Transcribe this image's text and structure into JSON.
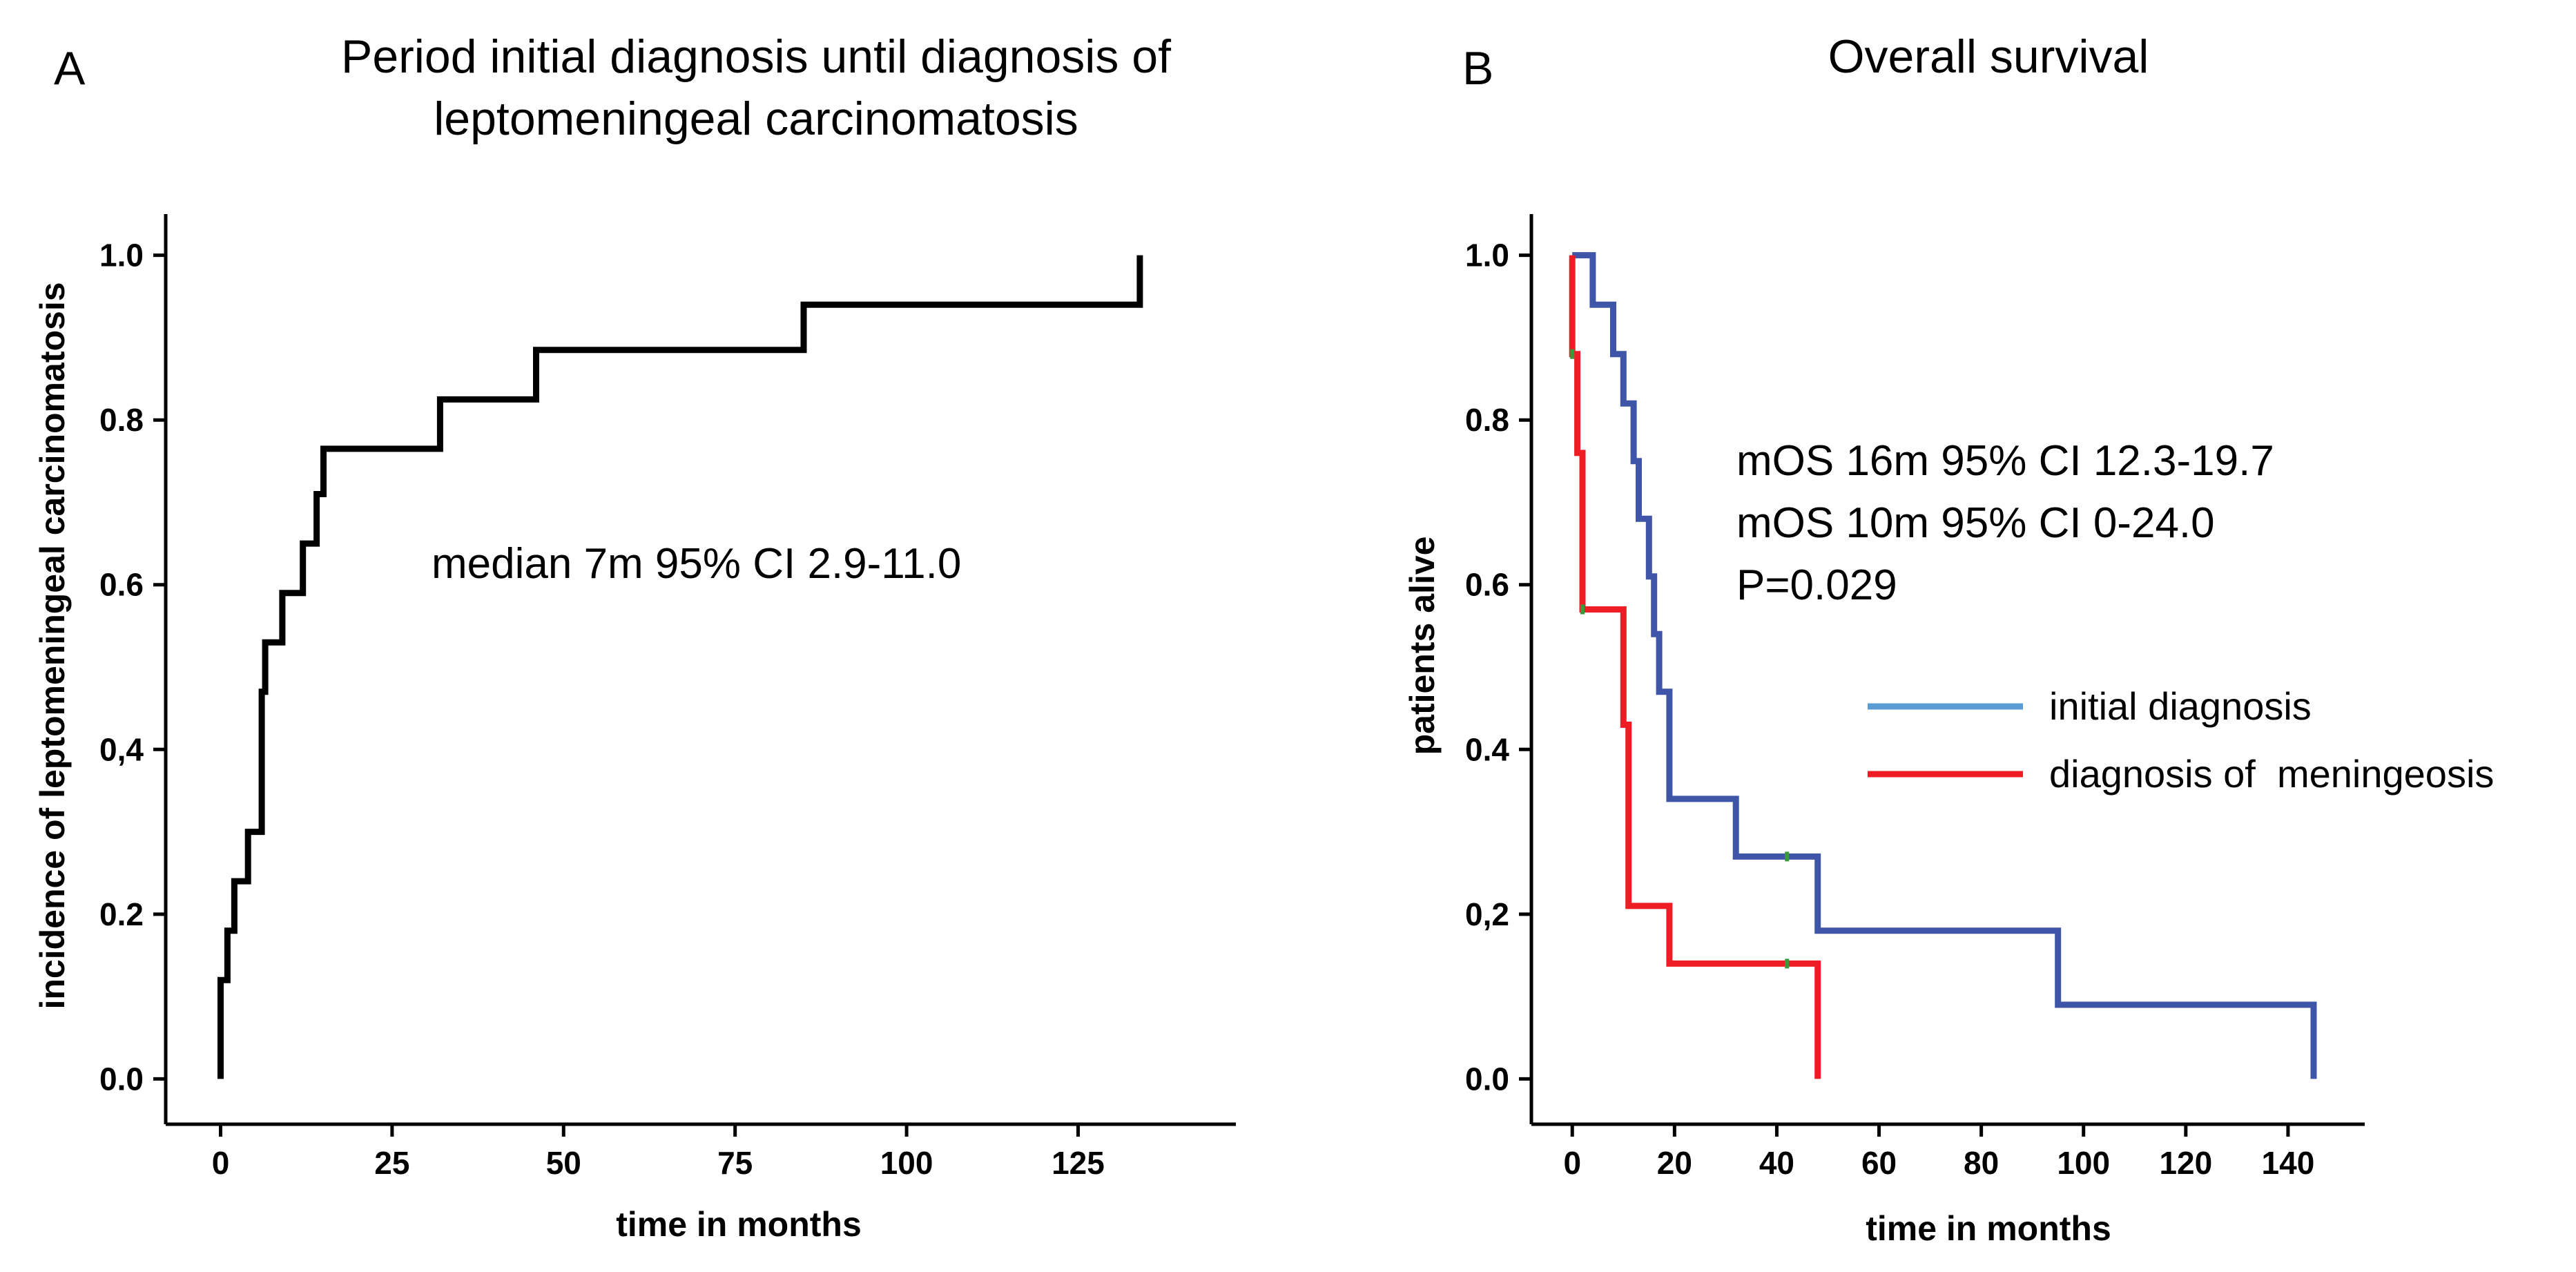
{
  "chart_data": [
    {
      "type": "line",
      "step": true,
      "panel_label": "A",
      "title_lines": [
        "Period initial diagnosis until diagnosis of",
        "leptomeningeal carcinomatosis"
      ],
      "xlabel": "time in months",
      "ylabel": "incidence of leptomeningeal carcinomatosis",
      "xlim": [
        -8,
        148
      ],
      "ylim": [
        -0.055,
        1.05
      ],
      "xticks": [
        0,
        25,
        50,
        75,
        100,
        125
      ],
      "xtick_labels": [
        "0",
        "25",
        "50",
        "75",
        "100",
        "125"
      ],
      "yticks": [
        0.0,
        0.2,
        0.4,
        0.6,
        0.8,
        1.0
      ],
      "ytick_labels": [
        "0.0",
        "0.2",
        "0,4",
        "0.6",
        "0.8",
        "1.0"
      ],
      "annotation": "median 7m 95% CI 2.9-11.0",
      "series": [
        {
          "name": "incidence",
          "color": "#000000",
          "x": [
            0,
            0,
            1,
            1,
            2,
            2,
            4,
            4,
            6,
            6,
            6.5,
            6.5,
            9,
            9,
            12,
            12,
            14,
            14,
            15,
            15,
            32,
            32,
            46,
            46,
            85,
            85,
            134,
            134
          ],
          "y": [
            0,
            0.12,
            0.12,
            0.18,
            0.18,
            0.24,
            0.24,
            0.3,
            0.3,
            0.47,
            0.47,
            0.53,
            0.53,
            0.59,
            0.59,
            0.65,
            0.65,
            0.71,
            0.71,
            0.765,
            0.765,
            0.825,
            0.825,
            0.885,
            0.885,
            0.94,
            0.94,
            1.0
          ]
        }
      ]
    },
    {
      "type": "line",
      "step": true,
      "panel_label": "B",
      "title_lines": [
        "Overall survival"
      ],
      "xlabel": "time in months",
      "ylabel": "patients alive",
      "xlim": [
        -8,
        155
      ],
      "ylim": [
        -0.055,
        1.05
      ],
      "xticks": [
        0,
        20,
        40,
        60,
        80,
        100,
        120,
        140
      ],
      "xtick_labels": [
        "0",
        "20",
        "40",
        "60",
        "80",
        "100",
        "120",
        "140"
      ],
      "yticks": [
        0.0,
        0.2,
        0.4,
        0.6,
        0.8,
        1.0
      ],
      "ytick_labels": [
        "0.0",
        "0,2",
        "0.4",
        "0.6",
        "0.8",
        "1.0"
      ],
      "annotation_lines": [
        "mOS 16m 95% CI 12.3-19.7",
        "mOS 10m 95% CI 0-24.0",
        "P=0.029"
      ],
      "legend": [
        {
          "label": "initial diagnosis",
          "color": "#5a9bd5"
        },
        {
          "label": "diagnosis of  meningeosis",
          "color": "#ee1c24"
        }
      ],
      "series": [
        {
          "name": "initial diagnosis",
          "color": "#3f55a8",
          "x": [
            0,
            4,
            4,
            8,
            8,
            10,
            10,
            12,
            12,
            13,
            13,
            15,
            15,
            16,
            16,
            17,
            17,
            19,
            19,
            32,
            32,
            48,
            48,
            95,
            95,
            145,
            145
          ],
          "y": [
            1.0,
            1.0,
            0.94,
            0.94,
            0.88,
            0.88,
            0.82,
            0.82,
            0.75,
            0.75,
            0.68,
            0.68,
            0.61,
            0.61,
            0.54,
            0.54,
            0.47,
            0.47,
            0.34,
            0.34,
            0.27,
            0.27,
            0.18,
            0.18,
            0.09,
            0.09,
            0.0
          ]
        },
        {
          "name": "diagnosis of meningeosis",
          "color": "#ee1c24",
          "x": [
            0,
            0,
            1,
            1,
            2,
            2,
            10,
            10,
            11,
            11,
            19,
            19,
            48,
            48
          ],
          "y": [
            1.0,
            0.88,
            0.88,
            0.76,
            0.76,
            0.57,
            0.57,
            0.43,
            0.43,
            0.21,
            0.21,
            0.14,
            0.14,
            0.0
          ]
        }
      ],
      "censor_marks": [
        {
          "x": 0,
          "y": 0.88
        },
        {
          "x": 2,
          "y": 0.57
        },
        {
          "x": 42,
          "y": 0.27
        },
        {
          "x": 42,
          "y": 0.14
        }
      ],
      "censor_color": "#3a9a3a"
    }
  ]
}
